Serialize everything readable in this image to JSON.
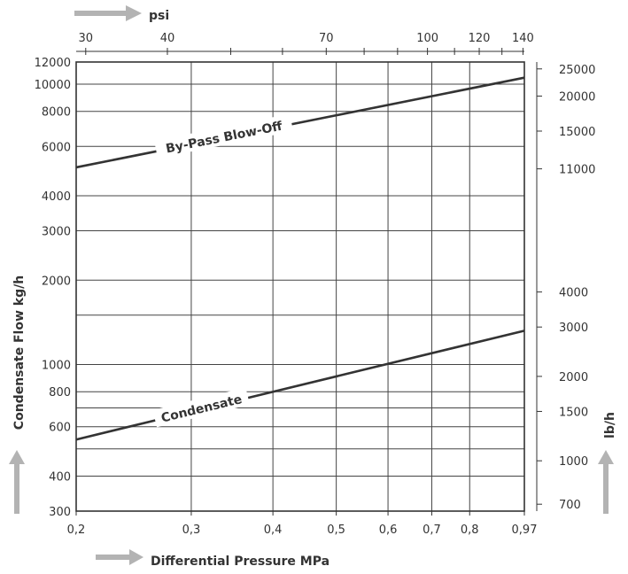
{
  "chart_data": {
    "type": "line",
    "scale": "log-log",
    "grid": true,
    "x": {
      "label": "Differential Pressure MPa",
      "range": [
        0.2,
        0.97
      ],
      "ticks": [
        0.2,
        0.3,
        0.4,
        0.5,
        0.6,
        0.7,
        0.8,
        0.97
      ],
      "tick_labels": [
        "0,2",
        "0,3",
        "0,4",
        "0,5",
        "0,6",
        "0,7",
        "0,8",
        "0,97"
      ]
    },
    "x_top": {
      "label": "psi",
      "ticks": [
        30,
        40,
        70,
        100,
        120,
        140
      ],
      "tick_labels": [
        "30",
        "40",
        "70",
        "100",
        "120",
        "140"
      ]
    },
    "y": {
      "label": "Condensate Flow kg/h",
      "range": [
        300,
        12000
      ],
      "ticks": [
        300,
        400,
        600,
        800,
        1000,
        2000,
        3000,
        4000,
        6000,
        8000,
        10000,
        12000
      ],
      "tick_labels": [
        "300",
        "400",
        "600",
        "800",
        "1000",
        "2000",
        "3000",
        "4000",
        "6000",
        "8000",
        "10000",
        "12000"
      ]
    },
    "y_right": {
      "label": "lb/h",
      "ticks": [
        700,
        1000,
        1500,
        2000,
        3000,
        4000,
        11000,
        15000,
        20000,
        25000
      ],
      "tick_labels": [
        "700",
        "1000",
        "1500",
        "2000",
        "3000",
        "4000",
        "11000",
        "15000",
        "20000",
        "25000"
      ]
    },
    "series": [
      {
        "name": "By-Pass Blow-Off",
        "x": [
          0.2,
          0.97
        ],
        "values": [
          5050,
          10550
        ]
      },
      {
        "name": "Condensate",
        "x": [
          0.2,
          0.97
        ],
        "values": [
          540,
          1320
        ]
      }
    ]
  }
}
